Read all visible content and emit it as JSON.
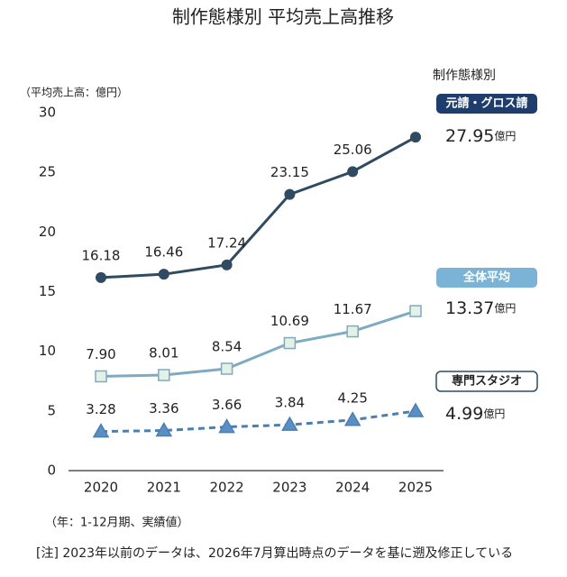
{
  "chart_data": {
    "type": "line",
    "title": "制作態様別 平均売上高推移",
    "y_axis_label": "（平均売上高：億円）",
    "legend_title": "制作態様別",
    "unit_label": "億円",
    "note_period": "（年：1-12月期、実績値）",
    "note": "[注] 2023年以前のデータは、2026年7月算出時点のデータを基に遡及修正している",
    "categories": [
      "2020",
      "2021",
      "2022",
      "2023",
      "2024",
      "2025"
    ],
    "ylim": [
      0,
      30
    ],
    "yticks": [
      0,
      5,
      10,
      15,
      20,
      25,
      30
    ],
    "series": [
      {
        "name": "元請・グロス請",
        "color": "#2f4a61",
        "marker": "circle",
        "dashed": false,
        "badge_color": "#1f3d6c",
        "values": [
          16.18,
          16.46,
          17.24,
          23.15,
          25.06,
          27.95
        ],
        "value_labels": [
          "16.18",
          "16.46",
          "17.24",
          "23.15",
          "25.06",
          "27.95"
        ]
      },
      {
        "name": "全体平均",
        "color": "#7eaac2",
        "marker": "square",
        "dashed": false,
        "badge_color": "#7ab3d6",
        "values": [
          7.9,
          8.01,
          8.54,
          10.69,
          11.67,
          13.37
        ],
        "value_labels": [
          "7.90",
          "8.01",
          "8.54",
          "10.69",
          "11.67",
          "13.37"
        ]
      },
      {
        "name": "専門スタジオ",
        "color": "#4a7fb2",
        "marker": "triangle",
        "dashed": true,
        "badge_color": "#ffffff",
        "values": [
          3.28,
          3.36,
          3.66,
          3.84,
          4.25,
          4.99
        ],
        "value_labels": [
          "3.28",
          "3.36",
          "3.66",
          "3.84",
          "4.25",
          "4.99"
        ]
      }
    ]
  }
}
